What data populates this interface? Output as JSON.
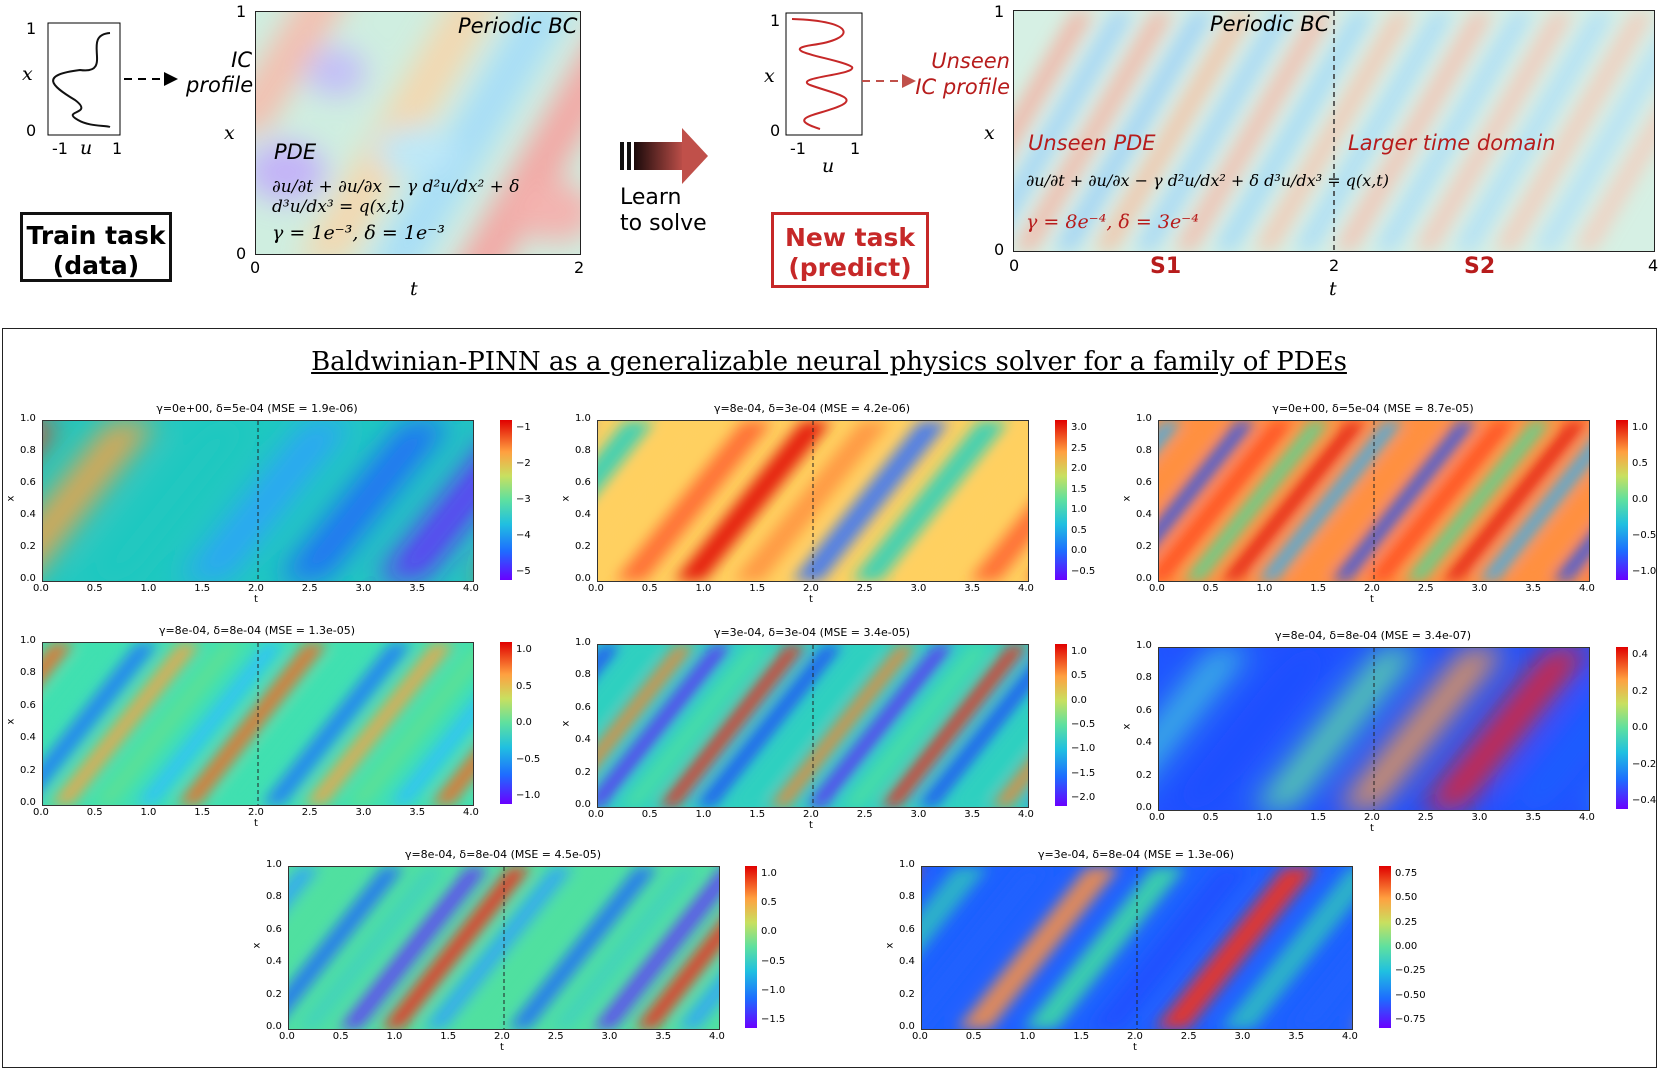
{
  "top": {
    "train_inset": {
      "y_top": "1",
      "y_bottom": "0",
      "x_left": "-1",
      "x_right": "1",
      "ylabel": "x",
      "xlabel": "u"
    },
    "train_box": {
      "line1": "Train task",
      "line2": "(data)"
    },
    "ic_label": {
      "line1": "IC",
      "line2": "profile"
    },
    "train_field": {
      "periodic": "Periodic BC",
      "pde_label": "PDE",
      "equation": "∂u/∂t + ∂u/∂x − γ d²u/dx² + δ d³u/dx³ = q(x,t)",
      "params": "γ = 1e⁻³, δ = 1e⁻³",
      "y_top": "1",
      "y_bottom": "0",
      "x_left": "0",
      "x_right": "2",
      "xlabel": "t",
      "ylabel": "x"
    },
    "learn": {
      "line1": "Learn",
      "line2": "to solve"
    },
    "new_inset": {
      "y_top": "1",
      "y_bottom": "0",
      "x_left": "-1",
      "x_right": "1",
      "ylabel": "x",
      "xlabel": "u"
    },
    "new_box": {
      "line1": "New task",
      "line2": "(predict)"
    },
    "unseen_ic": {
      "line1": "Unseen",
      "line2": "IC profile"
    },
    "test_field": {
      "periodic": "Periodic BC",
      "pde_label": "Unseen PDE",
      "domain_label": "Larger time domain",
      "equation": "∂u/∂t + ∂u/∂x − γ d²u/dx² + δ d³u/dx³ = q(x,t)",
      "params": "γ = 8e⁻⁴, δ = 3e⁻⁴",
      "s1": "S1",
      "s2": "S2",
      "y_top": "1",
      "y_bottom": "0",
      "x_0": "0",
      "x_2": "2",
      "x_4": "4",
      "xlabel": "t",
      "ylabel": "x"
    }
  },
  "bottom": {
    "title": "Baldwinian-PINN as a generalizable neural physics solver for a family of PDEs",
    "x_ticks": [
      "0.0",
      "0.5",
      "1.0",
      "1.5",
      "2.0",
      "2.5",
      "3.0",
      "3.5",
      "4.0"
    ],
    "y_ticks": [
      "0.0",
      "0.2",
      "0.4",
      "0.6",
      "0.8",
      "1.0"
    ],
    "xlabel": "t",
    "ylabel": "x",
    "panels": [
      {
        "title": "γ=0e+00,  δ=5e-04   (MSE = 1.9e-06)",
        "cbar": [
          "−1",
          "−2",
          "−3",
          "−4",
          "−5"
        ]
      },
      {
        "title": "γ=8e-04,  δ=3e-04   (MSE = 4.2e-06)",
        "cbar": [
          "3.0",
          "2.5",
          "2.0",
          "1.5",
          "1.0",
          "0.5",
          "0.0",
          "−0.5"
        ]
      },
      {
        "title": "γ=0e+00,  δ=5e-04   (MSE = 8.7e-05)",
        "cbar": [
          "1.0",
          "0.5",
          "0.0",
          "−0.5",
          "−1.0"
        ]
      },
      {
        "title": "γ=8e-04,  δ=8e-04   (MSE = 1.3e-05)",
        "cbar": [
          "1.0",
          "0.5",
          "0.0",
          "−0.5",
          "−1.0"
        ]
      },
      {
        "title": "γ=3e-04,  δ=3e-04   (MSE = 3.4e-05)",
        "cbar": [
          "1.0",
          "0.5",
          "0.0",
          "−0.5",
          "−1.0",
          "−1.5",
          "−2.0"
        ]
      },
      {
        "title": "γ=8e-04,  δ=8e-04   (MSE = 3.4e-07)",
        "cbar": [
          "0.4",
          "0.2",
          "0.0",
          "−0.2",
          "−0.4"
        ]
      },
      {
        "title": "γ=8e-04,  δ=8e-04   (MSE = 4.5e-05)",
        "cbar": [
          "1.0",
          "0.5",
          "0.0",
          "−0.5",
          "−1.0",
          "−1.5"
        ]
      },
      {
        "title": "γ=3e-04,  δ=8e-04   (MSE = 1.3e-06)",
        "cbar": [
          "0.75",
          "0.50",
          "0.25",
          "0.00",
          "−0.25",
          "−0.50",
          "−0.75"
        ]
      }
    ]
  },
  "colors": {
    "accent_red": "#c62828",
    "rainbow": [
      "#6a00ff",
      "#1e90ff",
      "#20d0c0",
      "#8ee07a",
      "#f5c04a",
      "#ff6030",
      "#e00000"
    ]
  }
}
